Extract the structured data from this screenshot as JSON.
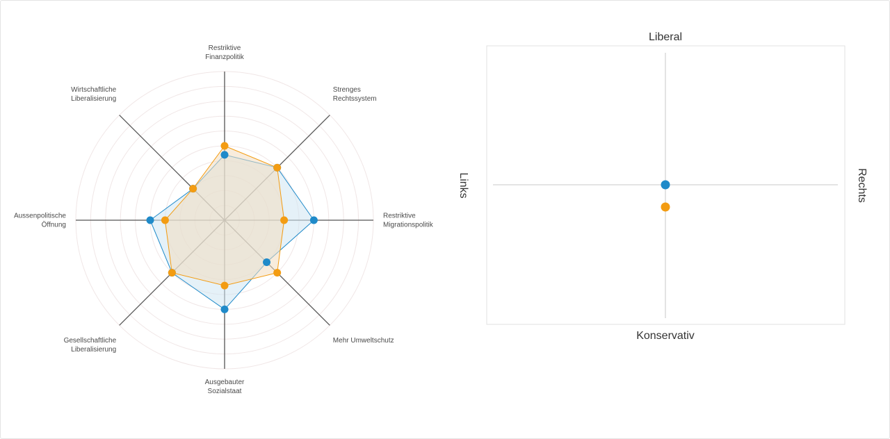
{
  "chart_data": [
    {
      "type": "radar",
      "axes": [
        {
          "label_lines": [
            "Restriktive",
            "Finanzpolitik"
          ]
        },
        {
          "label_lines": [
            "Strenges",
            "Rechtssystem"
          ]
        },
        {
          "label_lines": [
            "Restriktive",
            "Migrationspolitik"
          ]
        },
        {
          "label_lines": [
            "Mehr Umweltschutz"
          ]
        },
        {
          "label_lines": [
            "Ausgebauter",
            "Sozialstaat"
          ]
        },
        {
          "label_lines": [
            "Gesellschaftliche",
            "Liberalisierung"
          ]
        },
        {
          "label_lines": [
            "Aussenpolitische",
            "Öffnung"
          ]
        },
        {
          "label_lines": [
            "Wirtschaftliche",
            "Liberalisierung"
          ]
        }
      ],
      "range": [
        0,
        100
      ],
      "rings": 10,
      "series": [
        {
          "values": [
            44,
            50,
            60,
            40,
            60,
            50,
            50,
            30
          ],
          "color": "#1f8ac9",
          "fill": "#cfe6f3"
        },
        {
          "values": [
            50,
            50,
            40,
            50,
            44,
            50,
            40,
            30
          ],
          "color": "#f39c12",
          "fill": "#f2dcc0"
        }
      ]
    },
    {
      "type": "scatter",
      "labels": {
        "top": "Liberal",
        "bottom": "Konservativ",
        "left": "Links",
        "right": "Rechts"
      },
      "xlim": [
        -1,
        1
      ],
      "ylim": [
        -1,
        1
      ],
      "points": [
        {
          "x": 0.0,
          "y": 0.0,
          "color": "#1f8ac9"
        },
        {
          "x": 0.0,
          "y": -0.16,
          "color": "#f39c12"
        }
      ]
    }
  ]
}
